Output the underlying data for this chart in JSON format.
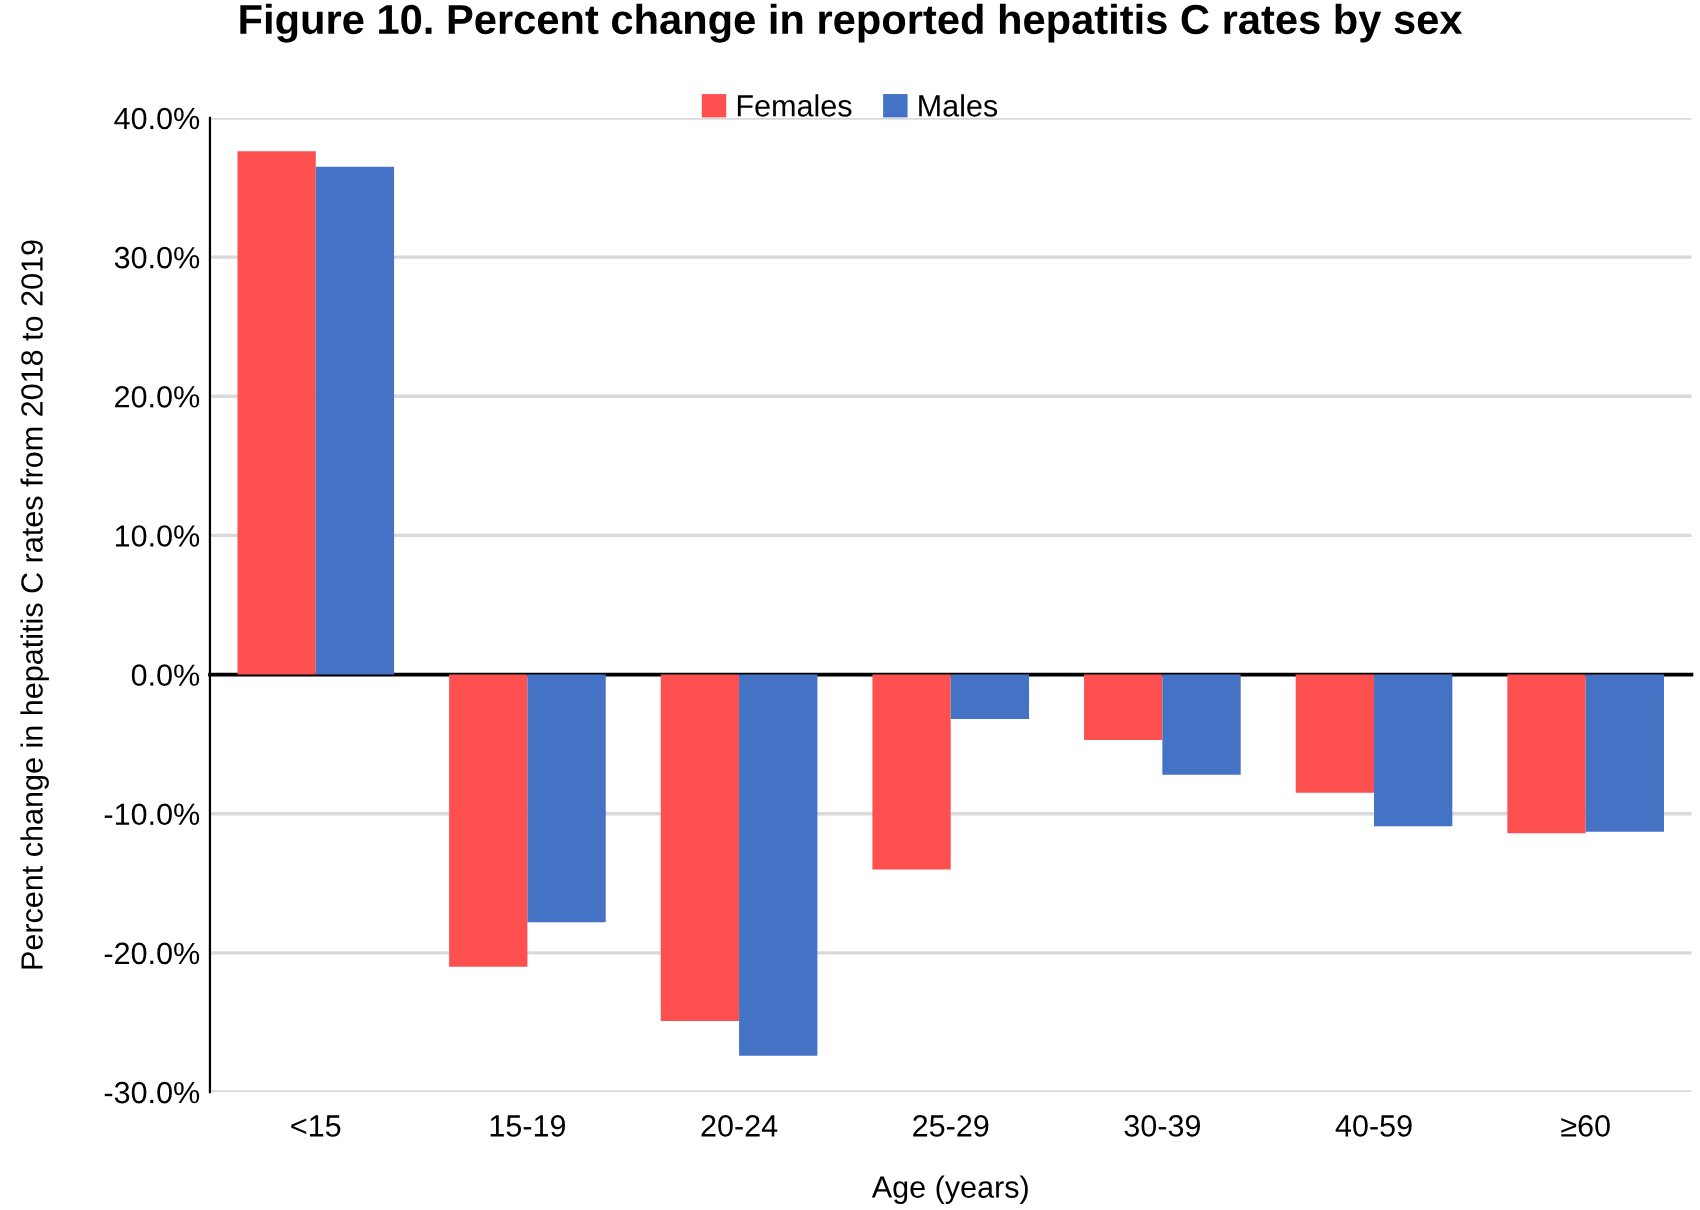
{
  "chart_data": {
    "type": "bar",
    "title": "Figure 10. Percent change in reported hepatitis C rates by sex",
    "xlabel": "Age (years)",
    "ylabel": "Percent change in hepatitis C rates from 2018 to 2019",
    "categories": [
      "<15",
      "15-19",
      "20-24",
      "25-29",
      "30-39",
      "40-59",
      "≥60"
    ],
    "series": [
      {
        "name": "Females",
        "color": "#ff5050",
        "values": [
          37.6,
          -21.0,
          -24.9,
          -14.0,
          -4.7,
          -8.5,
          -11.4
        ]
      },
      {
        "name": "Males",
        "color": "#4472c4",
        "values": [
          36.5,
          -17.8,
          -27.4,
          -3.2,
          -7.2,
          -10.9,
          -11.3
        ]
      }
    ],
    "ylim": [
      -30,
      40
    ],
    "yticks": [
      {
        "value": -30,
        "label": "-30.0%"
      },
      {
        "value": -20,
        "label": "-20.0%"
      },
      {
        "value": -10,
        "label": "-10.0%"
      },
      {
        "value": 0,
        "label": "0.0%"
      },
      {
        "value": 10,
        "label": "10.0%"
      },
      {
        "value": 20,
        "label": "20.0%"
      },
      {
        "value": 30,
        "label": "30.0%"
      },
      {
        "value": 40,
        "label": "40.0%"
      }
    ],
    "grid": "y",
    "legend": "top"
  }
}
